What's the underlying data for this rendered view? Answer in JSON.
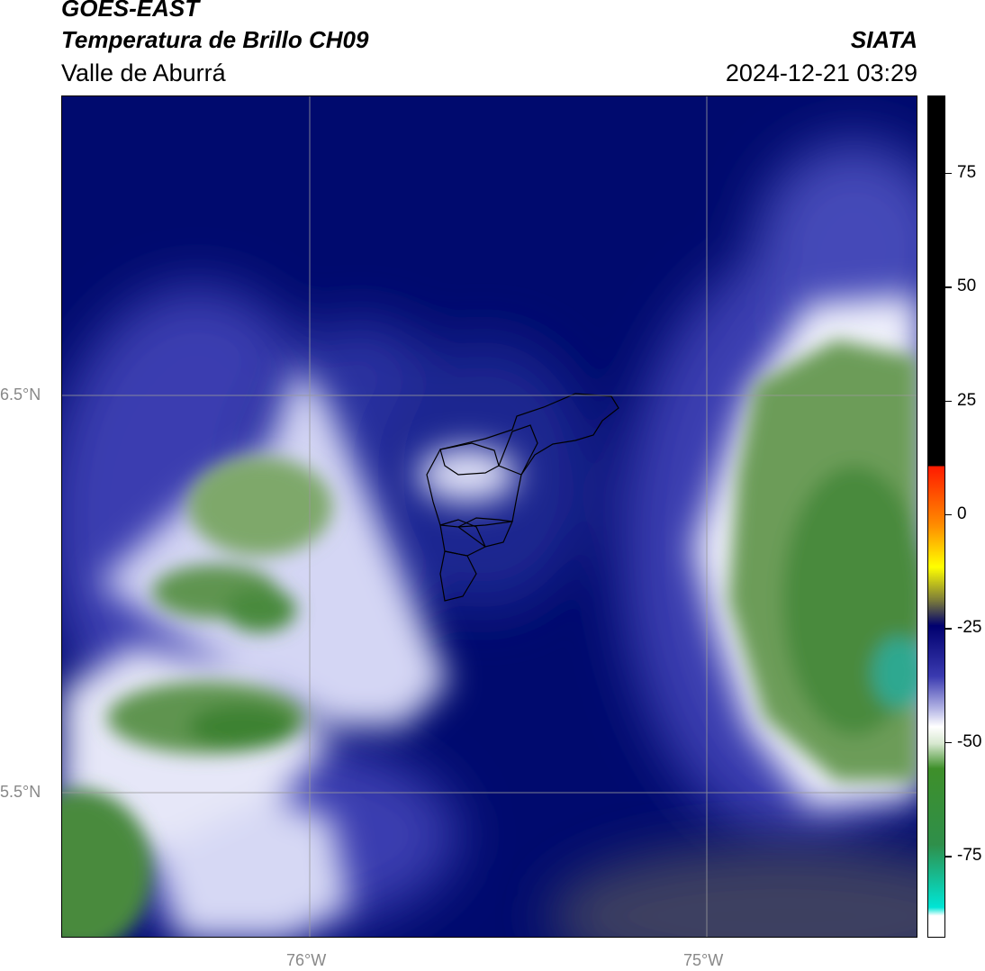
{
  "header": {
    "satellite": "GOES-EAST",
    "product": "Temperatura de Brillo CH09",
    "region": "Valle de Aburrá",
    "org": "SIATA",
    "datetime": "2024-12-21 03:29"
  },
  "map": {
    "lat_labels": [
      "6.5°N",
      "5.5°N"
    ],
    "lon_labels": [
      "76°W",
      "75°W"
    ]
  },
  "colorbar": {
    "ticks": [
      "75",
      "50",
      "25",
      "0",
      "-25",
      "-50",
      "-75"
    ],
    "tick_values": [
      75,
      50,
      25,
      0,
      -25,
      -50,
      -75
    ],
    "range": [
      -93,
      92
    ],
    "colors": {
      "warm_black": "#000000",
      "red": "#ff1a00",
      "orange": "#ff8c00",
      "yellow": "#ffff00",
      "dark_navy": "#00006e",
      "mid_blue": "#3a3ab0",
      "white": "#ffffff",
      "green": "#3e8f2a",
      "cyan": "#00e5d5"
    }
  }
}
